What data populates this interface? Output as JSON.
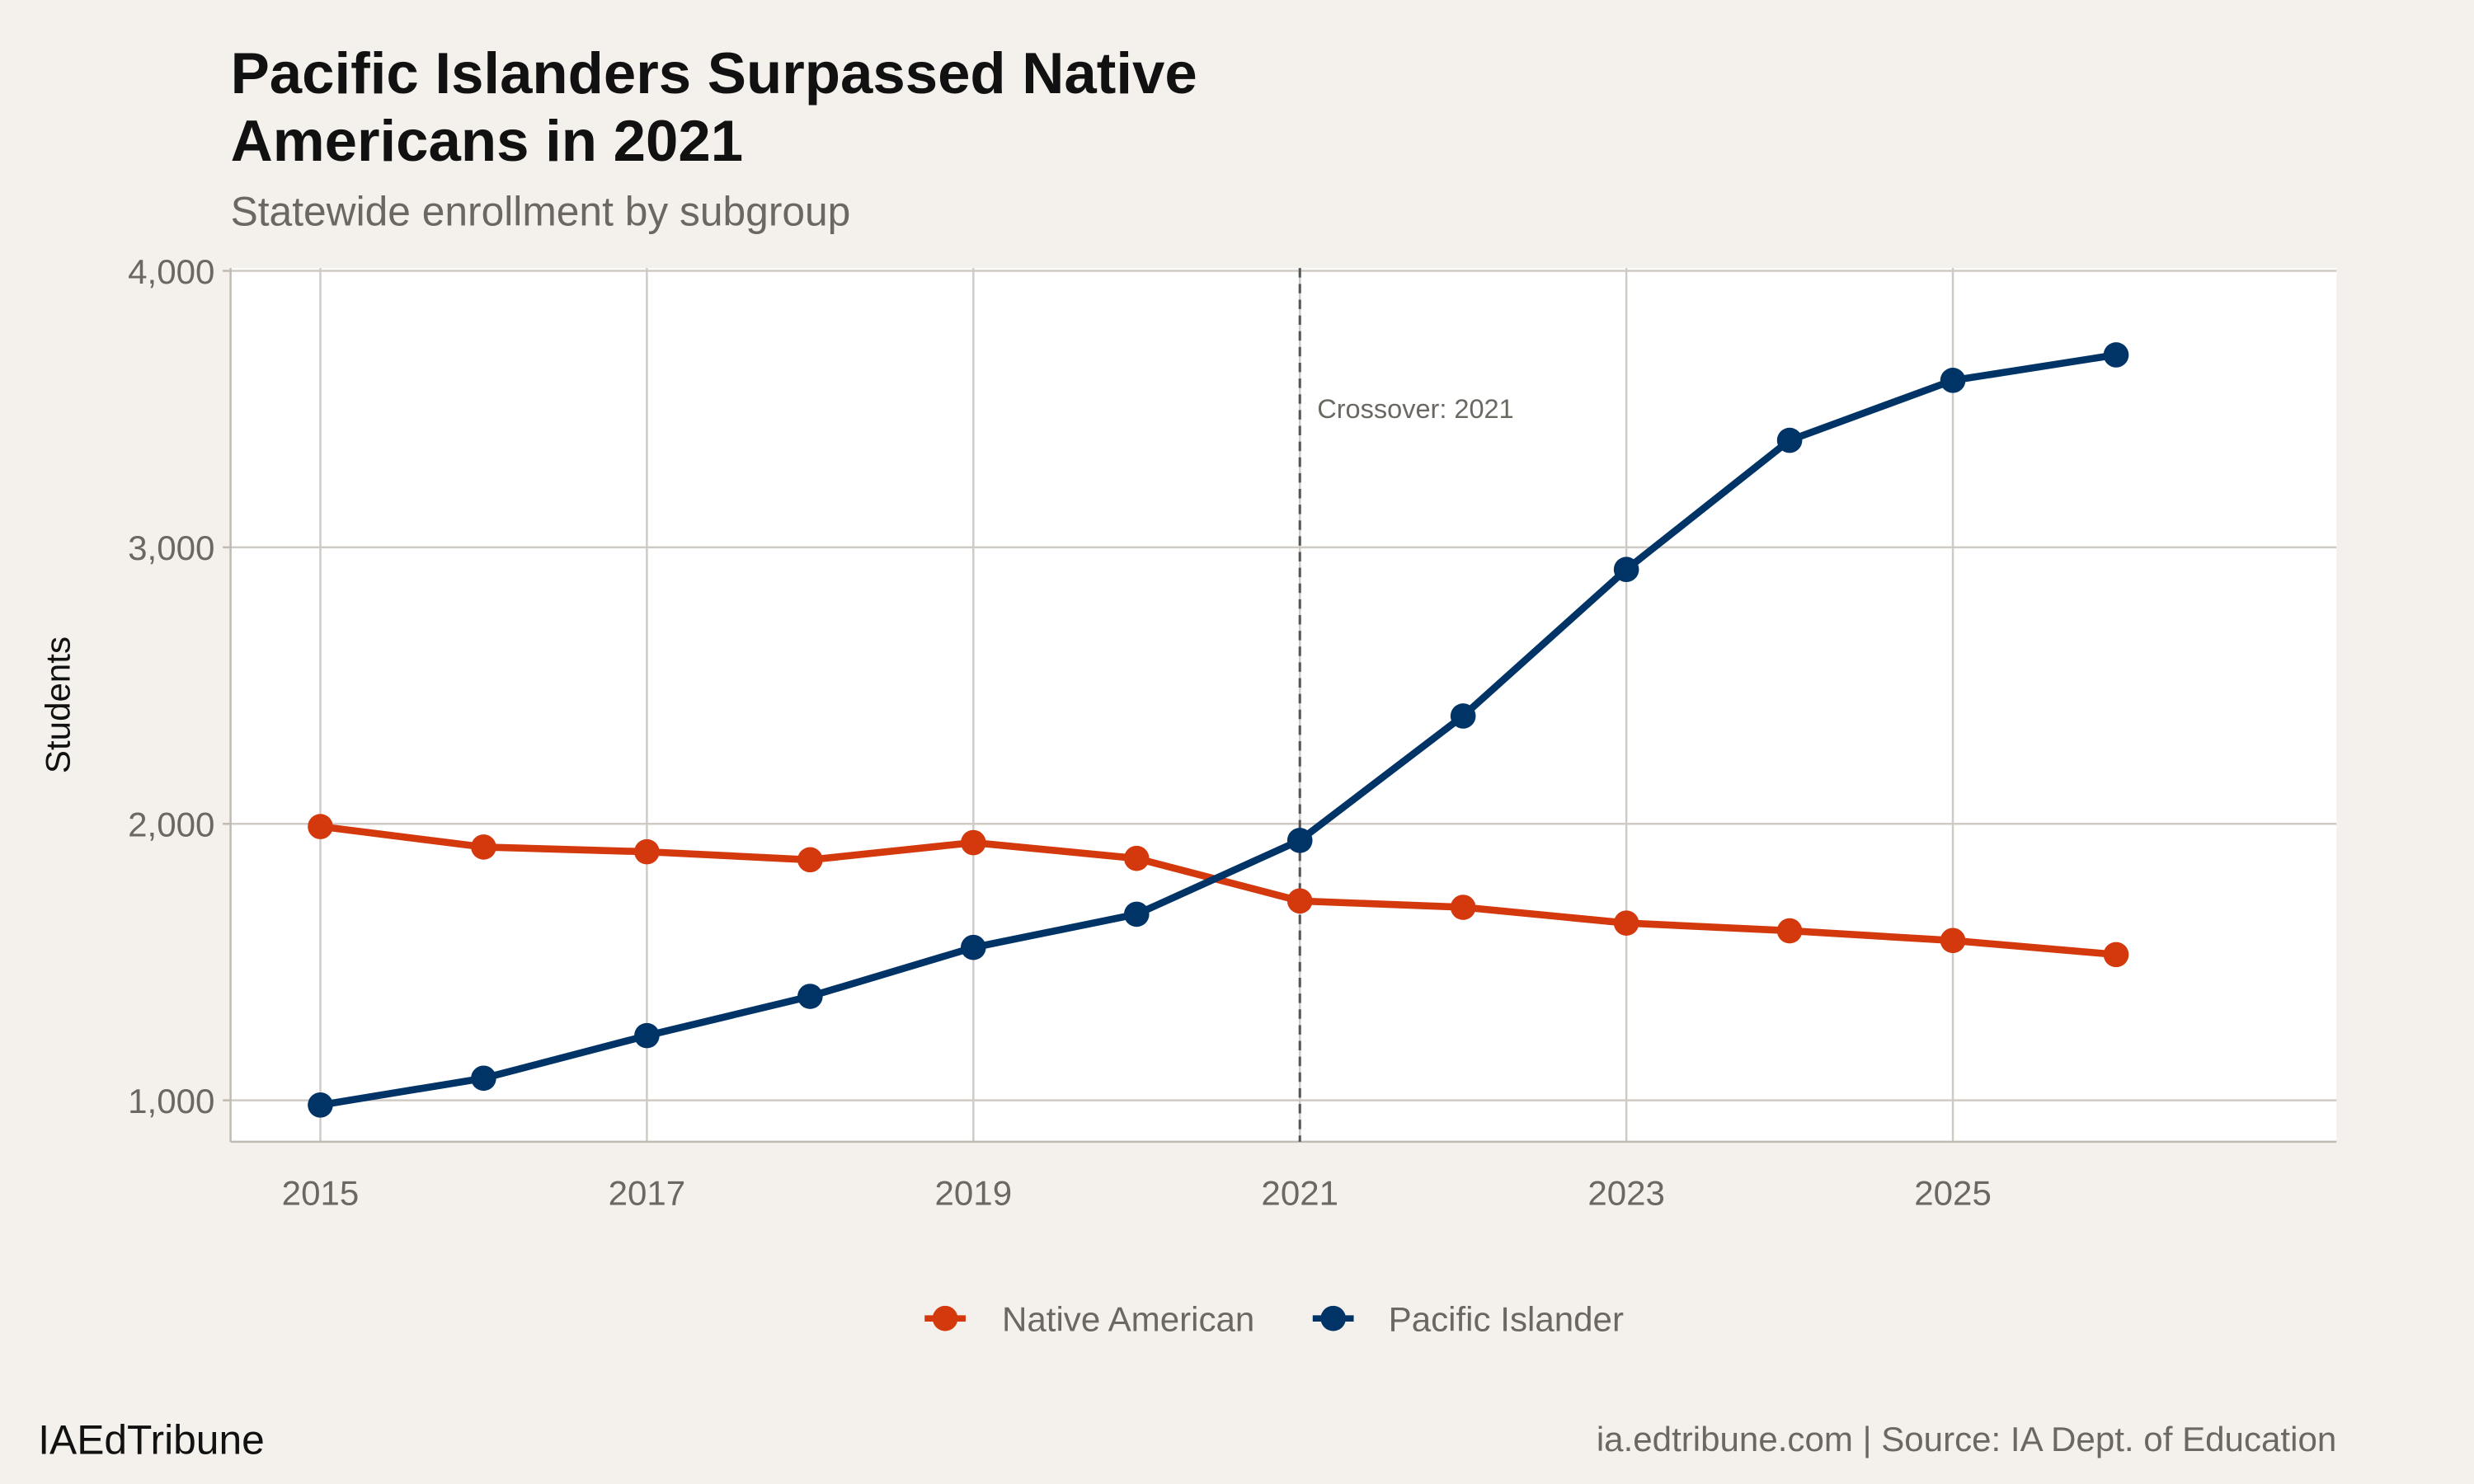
{
  "colors": {
    "background": "#f4f1ec",
    "panel": "#ffffff",
    "native_american": "#d4380d",
    "pacific_islander": "#003366",
    "grid": "#cfcbc4"
  },
  "chart_data": {
    "type": "line",
    "title_line1": "Pacific Islanders Surpassed Native",
    "title_line2": "Americans in 2021",
    "subtitle": "Statewide enrollment by subgroup",
    "xlabel": "",
    "ylabel": "Students",
    "x": [
      2015,
      2016,
      2017,
      2018,
      2019,
      2020,
      2021,
      2022,
      2023,
      2024,
      2025,
      2026
    ],
    "xlim": [
      2014.45,
      2027.35
    ],
    "ylim": [
      850,
      4010
    ],
    "x_ticks": [
      "2015",
      "2017",
      "2019",
      "2021",
      "2023",
      "2025"
    ],
    "y_ticks": [
      "1,000",
      "2,000",
      "3,000",
      "4,000"
    ],
    "grid": true,
    "legend_position": "bottom",
    "series": [
      {
        "name": "Native American",
        "color": "#d4380d",
        "values": [
          1990,
          1916,
          1899,
          1870,
          1932,
          1875,
          1721,
          1698,
          1641,
          1613,
          1578,
          1527
        ]
      },
      {
        "name": "Pacific Islander",
        "color": "#003366",
        "values": [
          983,
          1080,
          1234,
          1376,
          1553,
          1673,
          1940,
          2390,
          2920,
          3387,
          3604,
          3696
        ]
      }
    ],
    "annotation": {
      "text": "Crossover: 2021",
      "x": 2021,
      "line_style": "dashed"
    }
  },
  "footer": {
    "brand": "IAEdTribune",
    "source": "ia.edtribune.com | Source: IA Dept. of Education"
  }
}
